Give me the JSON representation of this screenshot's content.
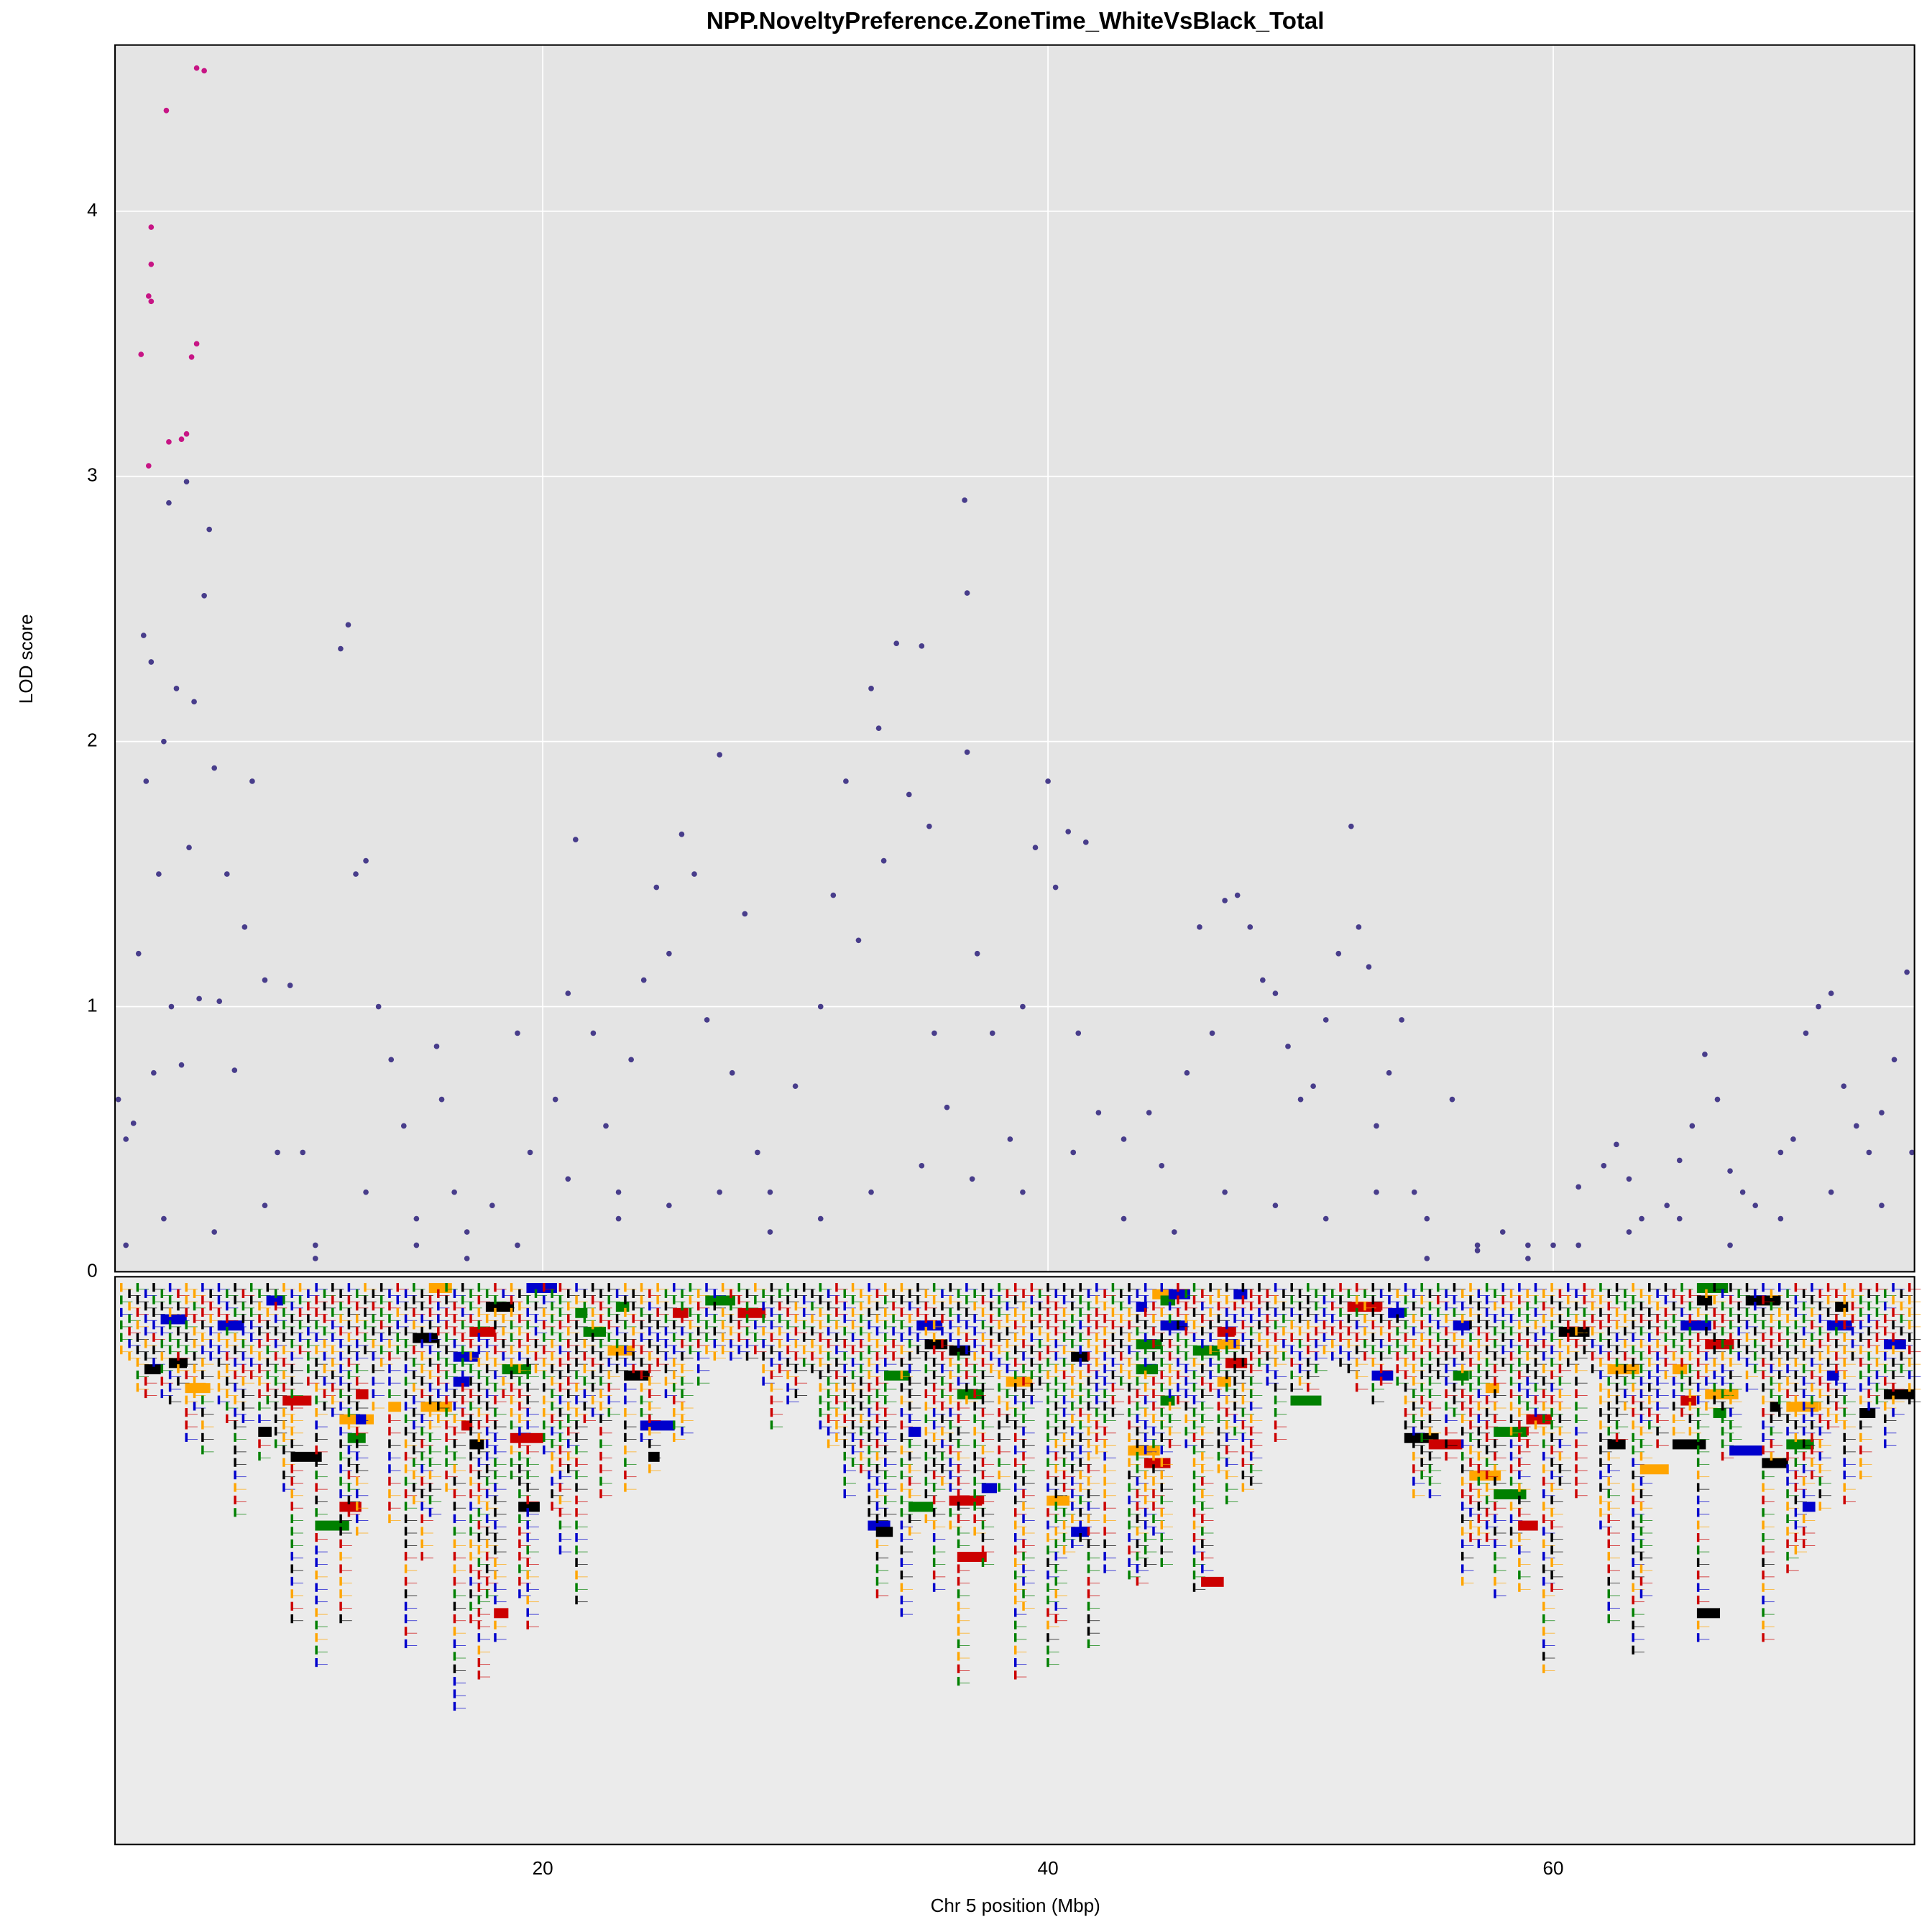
{
  "chart_data": {
    "type": "scatter",
    "title": "NPP.NoveltyPreference.ZoneTime_WhiteVsBlack_Total",
    "x_label": "Chr 5 position (Mbp)",
    "y_label": "LOD score",
    "xlim": [
      3.07,
      74.3
    ],
    "ylim": [
      0,
      4.627
    ],
    "xticks": [
      20,
      40,
      60
    ],
    "yticks": [
      0,
      1,
      2,
      3,
      4
    ],
    "grid": true,
    "series": [
      {
        "color": "#483d8b",
        "x": [
          3.2,
          3.5,
          3.8,
          4.0,
          4.2,
          4.3,
          4.5,
          4.6,
          4.8,
          5.0,
          5.2,
          5.3,
          5.5,
          5.7,
          5.9,
          6.0,
          6.2,
          6.4,
          6.6,
          6.8,
          7.0,
          7.2,
          7.5,
          7.8,
          8.2,
          8.5,
          9.0,
          9.5,
          10.0,
          10.5,
          11.0,
          12.0,
          12.3,
          12.6,
          13.0,
          13.5,
          14.0,
          14.5,
          15.0,
          15.8,
          16.0,
          16.5,
          17.0,
          18.0,
          19.0,
          19.5,
          20.5,
          21.0,
          21.3,
          22.0,
          22.5,
          23.0,
          23.5,
          24.0,
          24.5,
          25.0,
          25.5,
          26.0,
          26.5,
          27.0,
          27.5,
          28.0,
          28.5,
          29.0,
          30.0,
          31.0,
          31.5,
          32.0,
          32.5,
          33.0,
          33.3,
          33.5,
          34.0,
          34.5,
          35.0,
          35.3,
          35.5,
          36.0,
          36.7,
          36.8,
          36.8,
          37.2,
          37.8,
          38.5,
          39.0,
          39.5,
          40.0,
          40.3,
          40.8,
          41.2,
          41.5,
          42.0,
          43.0,
          44.0,
          44.5,
          45.5,
          46.0,
          46.5,
          47.0,
          47.5,
          48.0,
          48.5,
          49.0,
          49.5,
          50.0,
          50.5,
          51.0,
          51.5,
          52.0,
          52.3,
          52.7,
          53.0,
          53.5,
          54.0,
          54.5,
          55.0,
          56.0,
          57.0,
          58.0,
          59.0,
          60.0,
          61.0,
          62.0,
          62.5,
          63.0,
          63.5,
          64.5,
          65.0,
          65.5,
          66.0,
          66.5,
          67.0,
          67.5,
          68.0,
          69.0,
          69.5,
          70.0,
          70.5,
          71.0,
          71.5,
          72.0,
          72.5,
          73.0,
          73.5,
          74.0,
          74.2,
          3.5,
          5,
          7,
          9,
          11,
          13,
          15,
          17,
          19,
          21,
          23,
          25,
          27,
          29,
          31,
          33,
          35,
          37,
          39,
          41,
          43,
          45,
          47,
          49,
          51,
          53,
          55,
          57,
          59,
          61,
          63,
          65,
          67,
          69,
          71,
          73
        ],
        "values": [
          0.65,
          0.5,
          0.56,
          1.2,
          2.4,
          1.85,
          2.3,
          0.75,
          1.5,
          2.0,
          2.9,
          1.0,
          2.2,
          0.78,
          2.98,
          1.6,
          2.15,
          1.03,
          2.55,
          2.8,
          1.9,
          1.02,
          1.5,
          0.76,
          1.3,
          1.85,
          1.1,
          0.45,
          1.08,
          0.45,
          0.1,
          2.35,
          2.44,
          1.5,
          1.55,
          1.0,
          0.8,
          0.55,
          0.2,
          0.85,
          0.65,
          0.3,
          0.15,
          0.25,
          0.9,
          0.45,
          0.65,
          1.05,
          1.63,
          0.9,
          0.55,
          0.3,
          0.8,
          1.1,
          1.45,
          1.2,
          1.65,
          1.5,
          0.95,
          1.95,
          0.75,
          1.35,
          0.45,
          0.3,
          0.7,
          1.0,
          1.42,
          1.85,
          1.25,
          2.2,
          2.05,
          1.55,
          2.37,
          1.8,
          2.36,
          1.68,
          0.9,
          0.62,
          2.91,
          2.56,
          1.96,
          1.2,
          0.9,
          0.5,
          1.0,
          1.6,
          1.85,
          1.45,
          1.66,
          0.9,
          1.62,
          0.6,
          0.5,
          0.6,
          0.4,
          0.75,
          1.3,
          0.9,
          1.4,
          1.42,
          1.3,
          1.1,
          1.05,
          0.85,
          0.65,
          0.7,
          0.95,
          1.2,
          1.68,
          1.3,
          1.15,
          0.55,
          0.75,
          0.95,
          0.3,
          0.2,
          0.65,
          0.1,
          0.15,
          0.05,
          0.1,
          0.32,
          0.4,
          0.48,
          0.35,
          0.2,
          0.25,
          0.42,
          0.55,
          0.82,
          0.65,
          0.38,
          0.3,
          0.25,
          0.45,
          0.5,
          0.9,
          1.0,
          1.05,
          0.7,
          0.55,
          0.45,
          0.6,
          0.8,
          1.13,
          0.45,
          0.1,
          0.2,
          0.15,
          0.25,
          0.05,
          0.3,
          0.1,
          0.05,
          0.1,
          0.35,
          0.2,
          0.25,
          0.3,
          0.15,
          0.2,
          0.3,
          0.4,
          0.35,
          0.3,
          0.45,
          0.2,
          0.15,
          0.3,
          0.25,
          0.2,
          0.3,
          0.05,
          0.08,
          0.1,
          0.1,
          0.15,
          0.2,
          0.1,
          0.2,
          0.3,
          0.25
        ]
      },
      {
        "color": "#c71585",
        "x": [
          6.3,
          6.6,
          5.1,
          4.5,
          4.5,
          4.4,
          4.5,
          4.1,
          6.1,
          6.3,
          5.9,
          5.7,
          5.2,
          4.4
        ],
        "values": [
          4.54,
          4.53,
          4.38,
          3.94,
          3.8,
          3.68,
          3.66,
          3.46,
          3.45,
          3.5,
          3.16,
          3.14,
          3.13,
          3.04
        ]
      }
    ]
  }
}
